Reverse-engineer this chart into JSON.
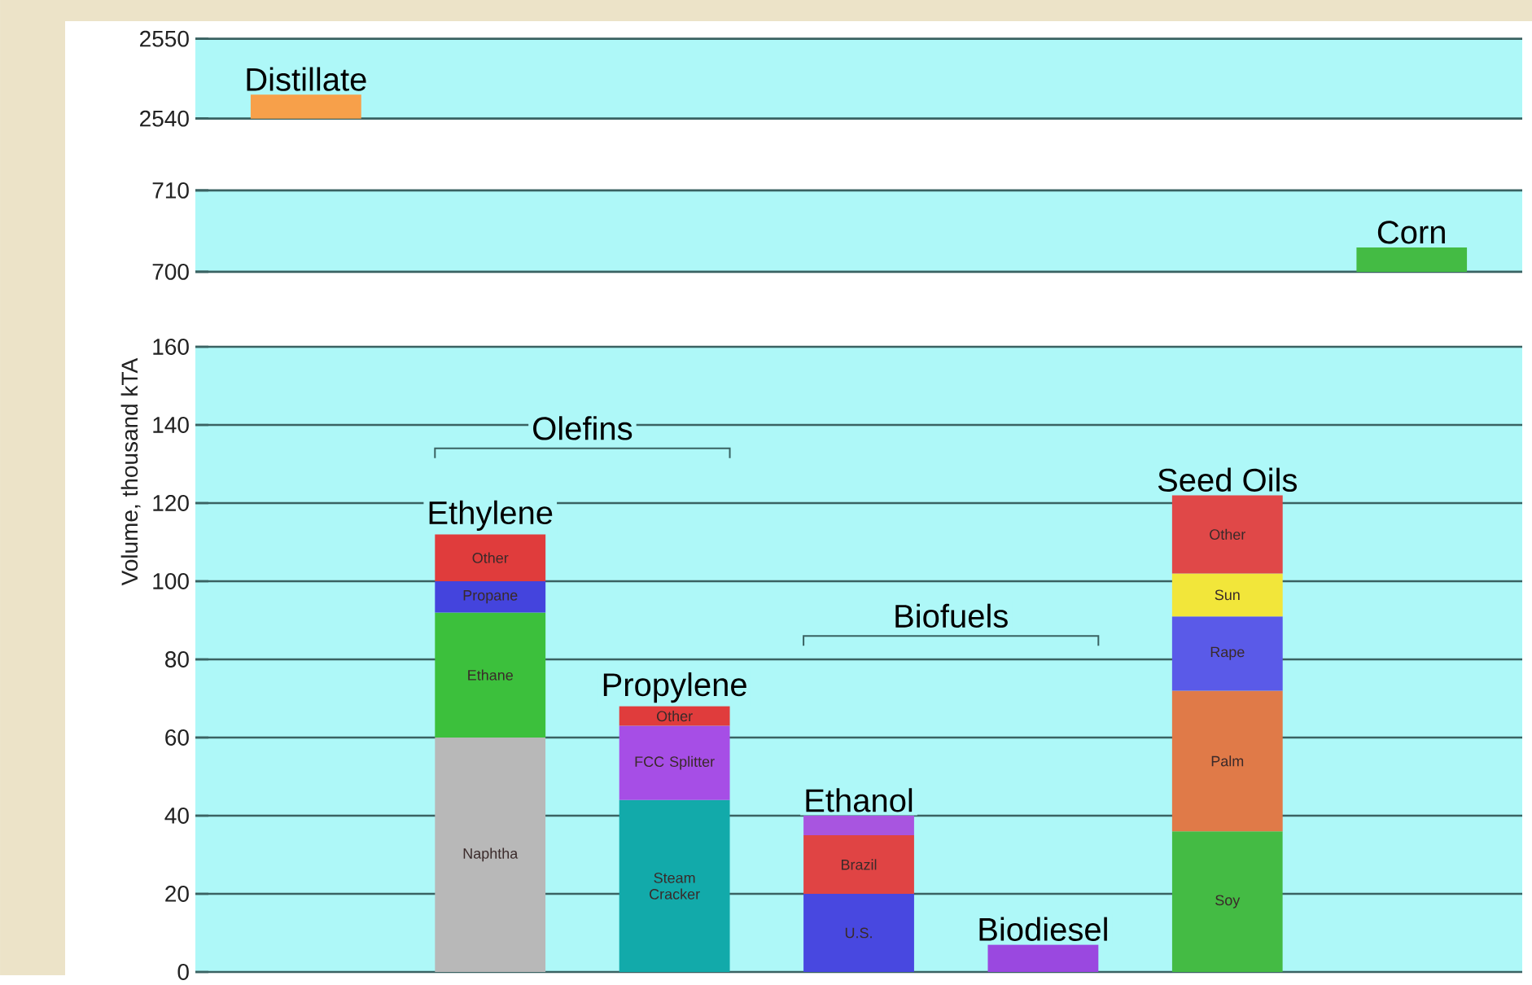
{
  "chart_data": [
    {
      "type": "bar",
      "stacked": true,
      "categories": [
        "Distillate",
        null,
        null,
        null,
        null,
        null,
        null
      ],
      "ylim": [
        2540,
        2550
      ],
      "yticks": [
        2540,
        2550
      ],
      "grid": "y",
      "series": [
        {
          "color": "#f7a04a",
          "values": [
            2543,
            null,
            null,
            null,
            null,
            null,
            null
          ]
        }
      ]
    },
    {
      "type": "bar",
      "stacked": true,
      "categories": [
        null,
        null,
        null,
        null,
        null,
        null,
        "Corn"
      ],
      "ylim": [
        700,
        710
      ],
      "yticks": [
        700,
        710
      ],
      "grid": "y",
      "series": [
        {
          "color": "#44bb44",
          "values": [
            null,
            null,
            null,
            null,
            null,
            null,
            703
          ]
        }
      ]
    },
    {
      "type": "bar",
      "stacked": true,
      "categories": [
        null,
        "Ethylene",
        "Propylene",
        "Ethanol",
        "Biodiesel",
        "Seed Oils",
        null
      ],
      "ylim": [
        0,
        160
      ],
      "yticks": [
        0,
        20,
        40,
        60,
        80,
        100,
        120,
        140,
        160
      ],
      "grid": "y",
      "ylabel": "Volume, thousand kTA",
      "series": [
        {
          "name": "Naphtha",
          "color": "#b8b8b8",
          "values": [
            null,
            60,
            null,
            null,
            null,
            null,
            null
          ]
        },
        {
          "name": "Ethane",
          "color": "#3cc03c",
          "values": [
            null,
            32,
            null,
            null,
            null,
            null,
            null
          ]
        },
        {
          "name": "Propane",
          "color": "#4444dd",
          "values": [
            null,
            8,
            null,
            null,
            null,
            null,
            null
          ]
        },
        {
          "name": "Other",
          "color": "#e03c3c",
          "values": [
            null,
            12,
            null,
            null,
            null,
            null,
            null
          ]
        },
        {
          "name": "Steam Cracker",
          "color": "#12aaaa",
          "values": [
            null,
            null,
            44,
            null,
            null,
            null,
            null
          ]
        },
        {
          "name": "FCC Splitter",
          "color": "#a64ee6",
          "values": [
            null,
            null,
            19,
            null,
            null,
            null,
            null
          ]
        },
        {
          "name": "Other",
          "color": "#e03c3c",
          "values": [
            null,
            null,
            5,
            null,
            null,
            null,
            null
          ]
        },
        {
          "name": "U.S.",
          "color": "#4848e0",
          "values": [
            null,
            null,
            null,
            20,
            null,
            null,
            null
          ]
        },
        {
          "name": "Brazil",
          "color": "#e04444",
          "values": [
            null,
            null,
            null,
            15,
            null,
            null,
            null
          ]
        },
        {
          "color": "#a855e0",
          "values": [
            null,
            null,
            null,
            5,
            null,
            null,
            null
          ]
        },
        {
          "color": "#9a48e0",
          "values": [
            null,
            null,
            null,
            null,
            7,
            null,
            null
          ]
        },
        {
          "name": "Soy",
          "color": "#44bb44",
          "values": [
            null,
            null,
            null,
            null,
            null,
            36,
            null
          ]
        },
        {
          "name": "Palm",
          "color": "#e07a48",
          "values": [
            null,
            null,
            null,
            null,
            null,
            36,
            null
          ]
        },
        {
          "name": "Rape",
          "color": "#5a5ae8",
          "values": [
            null,
            null,
            null,
            null,
            null,
            19,
            null
          ]
        },
        {
          "name": "Sun",
          "color": "#f2e63a",
          "values": [
            null,
            null,
            null,
            null,
            null,
            11,
            null
          ]
        },
        {
          "name": "Other",
          "color": "#e04848",
          "values": [
            null,
            null,
            null,
            null,
            null,
            20,
            null
          ]
        }
      ],
      "annotations": [
        "Olefins",
        "Biofuels"
      ]
    }
  ]
}
